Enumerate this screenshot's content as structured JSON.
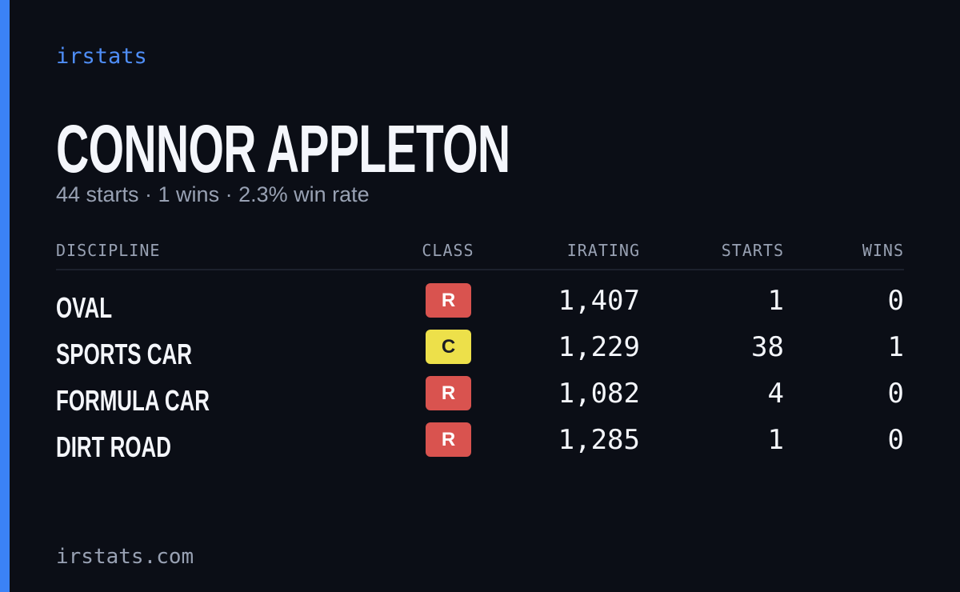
{
  "header": {
    "brand": "irstats",
    "name": "CONNOR APPLETON",
    "subtitle": "44 starts · 1 wins · 2.3% win rate"
  },
  "table": {
    "columns": [
      "DISCIPLINE",
      "CLASS",
      "IRATING",
      "STARTS",
      "WINS"
    ],
    "rows": [
      {
        "discipline": "OVAL",
        "class": "R",
        "class_color": "#d9534f",
        "class_text_color": "#ffffff",
        "irating": "1,407",
        "starts": 1,
        "wins": 0
      },
      {
        "discipline": "SPORTS CAR",
        "class": "C",
        "class_color": "#ede04a",
        "class_text_color": "#1b1d24",
        "irating": "1,229",
        "starts": 38,
        "wins": 1
      },
      {
        "discipline": "FORMULA CAR",
        "class": "R",
        "class_color": "#d9534f",
        "class_text_color": "#ffffff",
        "irating": "1,082",
        "starts": 4,
        "wins": 0
      },
      {
        "discipline": "DIRT ROAD",
        "class": "R",
        "class_color": "#d9534f",
        "class_text_color": "#ffffff",
        "irating": "1,285",
        "starts": 1,
        "wins": 0
      }
    ]
  },
  "footer": {
    "url": "irstats.com"
  }
}
